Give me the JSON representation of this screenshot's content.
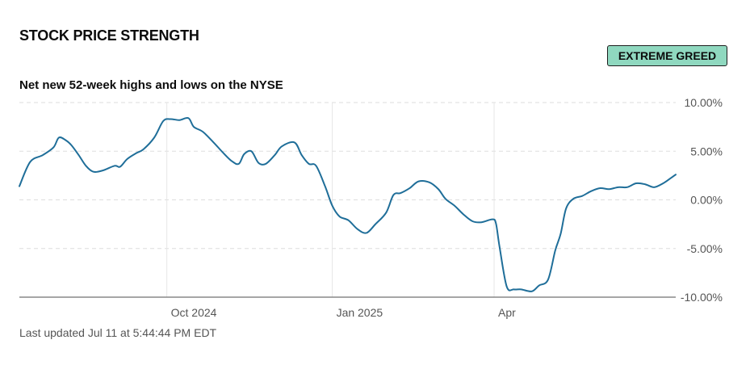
{
  "header": {
    "title": "STOCK PRICE STRENGTH",
    "badge": "EXTREME GREED",
    "subtitle": "Net new 52-week highs and lows on the NYSE"
  },
  "footer": {
    "updated": "Last updated Jul 11 at 5:44:44 PM EDT"
  },
  "colors": {
    "line": "#1f6e99",
    "badge_bg": "#8fd8bf",
    "grid": "#dddddd",
    "axis": "#888888"
  },
  "chart_data": {
    "type": "line",
    "title": "Net new 52-week highs and lows on the NYSE",
    "xlabel": "",
    "ylabel": "",
    "ylim": [
      -10,
      10
    ],
    "xlim": [
      "2024-07-11",
      "2025-07-11"
    ],
    "y_ticks": [
      {
        "value": 10,
        "label": "10.00%"
      },
      {
        "value": 5,
        "label": "5.00%"
      },
      {
        "value": 0,
        "label": "0.00%"
      },
      {
        "value": -5,
        "label": "-5.00%"
      },
      {
        "value": -10,
        "label": "-10.00%"
      }
    ],
    "x_ticks": [
      {
        "value": "2024-10-01",
        "label": "Oct 2024"
      },
      {
        "value": "2025-01-01",
        "label": "Jan 2025"
      },
      {
        "value": "2025-04-01",
        "label": "Apr"
      }
    ],
    "grid": true,
    "series": [
      {
        "values": [
          [
            "2024-07-11",
            1.4
          ],
          [
            "2024-07-17",
            3.9
          ],
          [
            "2024-07-24",
            4.6
          ],
          [
            "2024-07-30",
            5.4
          ],
          [
            "2024-08-02",
            6.4
          ],
          [
            "2024-08-06",
            6.1
          ],
          [
            "2024-08-09",
            5.6
          ],
          [
            "2024-08-13",
            4.6
          ],
          [
            "2024-08-17",
            3.5
          ],
          [
            "2024-08-21",
            2.9
          ],
          [
            "2024-08-26",
            3.0
          ],
          [
            "2024-09-02",
            3.5
          ],
          [
            "2024-09-05",
            3.4
          ],
          [
            "2024-09-09",
            4.2
          ],
          [
            "2024-09-14",
            4.8
          ],
          [
            "2024-09-18",
            5.2
          ],
          [
            "2024-09-24",
            6.4
          ],
          [
            "2024-09-29",
            8.1
          ],
          [
            "2024-10-03",
            8.3
          ],
          [
            "2024-10-08",
            8.2
          ],
          [
            "2024-10-13",
            8.4
          ],
          [
            "2024-10-16",
            7.5
          ],
          [
            "2024-10-21",
            7.0
          ],
          [
            "2024-10-27",
            5.9
          ],
          [
            "2024-11-01",
            4.9
          ],
          [
            "2024-11-06",
            4.0
          ],
          [
            "2024-11-10",
            3.7
          ],
          [
            "2024-11-13",
            4.7
          ],
          [
            "2024-11-17",
            5.0
          ],
          [
            "2024-11-21",
            3.8
          ],
          [
            "2024-11-25",
            3.7
          ],
          [
            "2024-11-30",
            4.6
          ],
          [
            "2024-12-04",
            5.5
          ],
          [
            "2024-12-11",
            5.9
          ],
          [
            "2024-12-15",
            4.6
          ],
          [
            "2024-12-19",
            3.7
          ],
          [
            "2024-12-23",
            3.5
          ],
          [
            "2024-12-28",
            1.4
          ],
          [
            "2025-01-01",
            -0.6
          ],
          [
            "2025-01-05",
            -1.7
          ],
          [
            "2025-01-10",
            -2.1
          ],
          [
            "2025-01-15",
            -3.0
          ],
          [
            "2025-01-20",
            -3.4
          ],
          [
            "2025-01-25",
            -2.5
          ],
          [
            "2025-01-31",
            -1.3
          ],
          [
            "2025-02-04",
            0.5
          ],
          [
            "2025-02-08",
            0.7
          ],
          [
            "2025-02-13",
            1.2
          ],
          [
            "2025-02-18",
            1.9
          ],
          [
            "2025-02-24",
            1.8
          ],
          [
            "2025-03-01",
            1.1
          ],
          [
            "2025-03-05",
            0.1
          ],
          [
            "2025-03-10",
            -0.6
          ],
          [
            "2025-03-15",
            -1.5
          ],
          [
            "2025-03-20",
            -2.2
          ],
          [
            "2025-03-25",
            -2.3
          ],
          [
            "2025-03-31",
            -2.0
          ],
          [
            "2025-04-02",
            -2.4
          ],
          [
            "2025-04-04",
            -4.8
          ],
          [
            "2025-04-08",
            -8.9
          ],
          [
            "2025-04-12",
            -9.2
          ],
          [
            "2025-04-16",
            -9.2
          ],
          [
            "2025-04-22",
            -9.4
          ],
          [
            "2025-04-26",
            -8.8
          ],
          [
            "2025-05-01",
            -8.2
          ],
          [
            "2025-05-05",
            -5.2
          ],
          [
            "2025-05-08",
            -3.5
          ],
          [
            "2025-05-11",
            -0.9
          ],
          [
            "2025-05-15",
            0.1
          ],
          [
            "2025-05-20",
            0.4
          ],
          [
            "2025-05-25",
            0.9
          ],
          [
            "2025-05-30",
            1.2
          ],
          [
            "2025-06-04",
            1.1
          ],
          [
            "2025-06-09",
            1.3
          ],
          [
            "2025-06-14",
            1.3
          ],
          [
            "2025-06-19",
            1.7
          ],
          [
            "2025-06-24",
            1.6
          ],
          [
            "2025-06-29",
            1.3
          ],
          [
            "2025-07-04",
            1.7
          ],
          [
            "2025-07-08",
            2.2
          ],
          [
            "2025-07-11",
            2.6
          ]
        ]
      }
    ]
  }
}
